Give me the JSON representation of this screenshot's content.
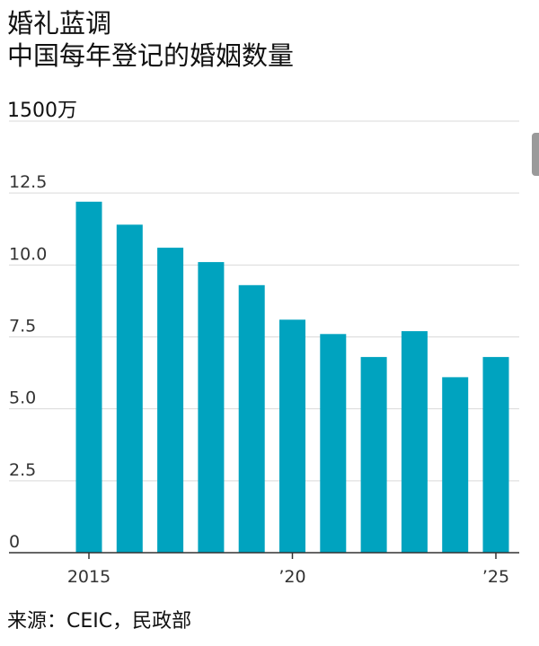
{
  "title": {
    "line1": "婚礼蓝调",
    "line2": "中国每年登记的婚姻数量"
  },
  "source": "来源：CEIC，民政部",
  "colors": {
    "bar": "#00A3BF",
    "grid": "#d9d9d9",
    "axis": "#333333"
  },
  "chart_data": {
    "type": "bar",
    "unit_label": "1500万",
    "x": [
      2015,
      2016,
      2017,
      2018,
      2019,
      2020,
      2021,
      2022,
      2023,
      2024,
      2025
    ],
    "values": [
      12.2,
      11.4,
      10.6,
      10.1,
      9.3,
      8.1,
      7.6,
      6.8,
      7.7,
      6.1,
      6.8
    ],
    "x_tick_values": [
      2015,
      2020,
      2025
    ],
    "x_tick_labels": [
      "2015",
      "’20",
      "’25"
    ],
    "y_ticks": [
      0,
      2.5,
      5.0,
      7.5,
      10.0,
      12.5,
      15.0
    ],
    "y_tick_labels": [
      "0",
      "2.5",
      "5.0",
      "7.5",
      "10.0",
      "12.5",
      ""
    ],
    "ylim": [
      0,
      15
    ],
    "grid": true,
    "xlabel": "",
    "ylabel": ""
  }
}
